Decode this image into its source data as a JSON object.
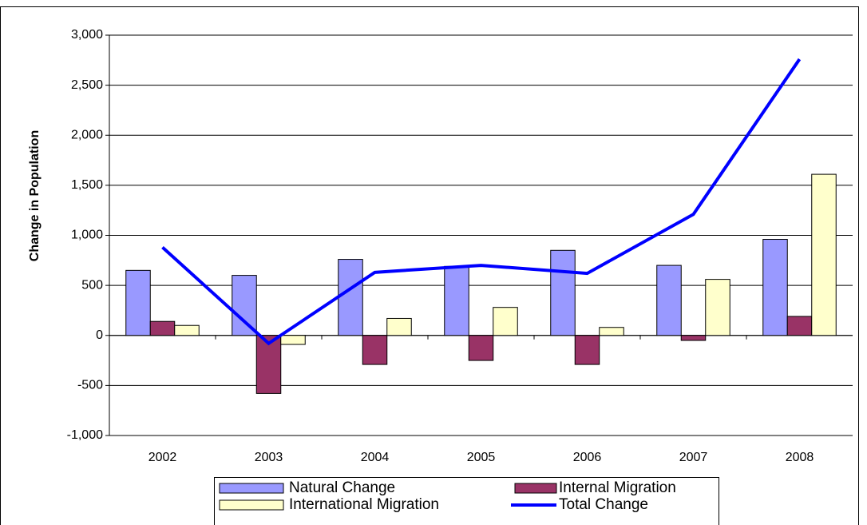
{
  "chart_data": {
    "type": "bar_line",
    "y_label": "Change in Population",
    "categories": [
      "2002",
      "2003",
      "2004",
      "2005",
      "2006",
      "2007",
      "2008"
    ],
    "series": [
      {
        "name": "Natural Change",
        "type": "bar",
        "color": "#9999ff",
        "values": [
          650,
          600,
          760,
          690,
          850,
          700,
          960
        ]
      },
      {
        "name": "Internal Migration",
        "type": "bar",
        "color": "#993366",
        "values": [
          140,
          -580,
          -290,
          -250,
          -290,
          -50,
          190
        ]
      },
      {
        "name": "International Migration",
        "type": "bar",
        "color": "#ffffcc",
        "values": [
          100,
          -90,
          170,
          280,
          80,
          560,
          1610
        ]
      },
      {
        "name": "Total Change",
        "type": "line",
        "color": "#0000ff",
        "values": [
          880,
          -80,
          630,
          700,
          620,
          1210,
          2760
        ]
      }
    ],
    "ylim": [
      -1000,
      3000
    ],
    "yticks": [
      {
        "value": -1000,
        "label": "-1,000"
      },
      -500,
      0,
      500,
      {
        "value": 1000,
        "label": "1,000"
      },
      {
        "value": 1500,
        "label": "1,500"
      },
      {
        "value": 2000,
        "label": "2,000"
      },
      {
        "value": 2500,
        "label": "2,500"
      },
      {
        "value": 3000,
        "label": "3,000"
      }
    ],
    "grid": true
  }
}
